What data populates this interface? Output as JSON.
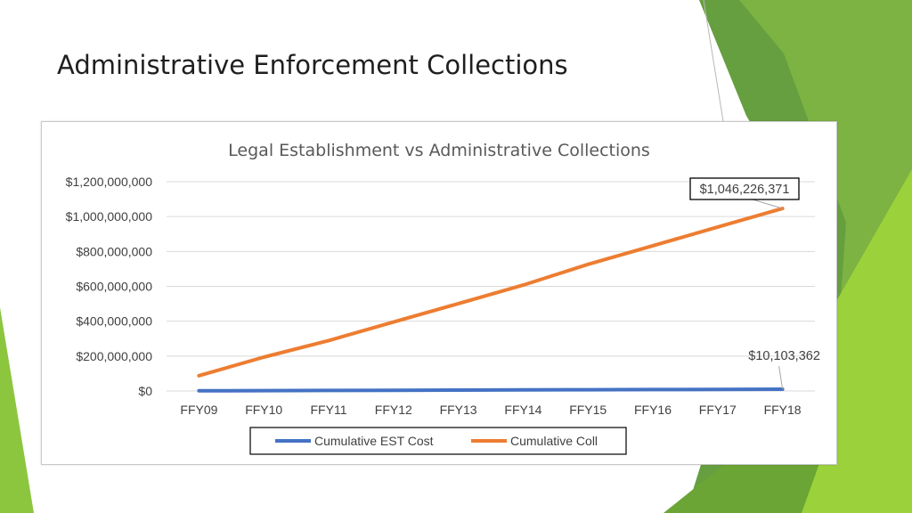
{
  "slide": {
    "title": "Administrative Enforcement Collections"
  },
  "colors": {
    "green_light": "#9bd13a",
    "green_mid": "#7cb342",
    "green_dark": "#5c8f2e",
    "est_series": "#4472c4",
    "coll_series": "#ed7d31"
  },
  "chart_data": {
    "type": "line",
    "title": "Legal Establishment vs Administrative Collections",
    "categories": [
      "FFY09",
      "FFY10",
      "FFY11",
      "FFY12",
      "FFY13",
      "FFY14",
      "FFY15",
      "FFY16",
      "FFY17",
      "FFY18"
    ],
    "series": [
      {
        "name": "Cumulative EST Cost",
        "values": [
          1010000,
          2020000,
          3030000,
          4040000,
          5050000,
          6060000,
          7070000,
          8080000,
          9090000,
          10103362
        ]
      },
      {
        "name": "Cumulative Coll",
        "values": [
          88000000,
          194000000,
          289000000,
          395000000,
          501000000,
          607000000,
          726000000,
          833000000,
          940000000,
          1046226371
        ]
      }
    ],
    "ylim": [
      0,
      1200000000
    ],
    "yticks": [
      "$0",
      "$200,000,000",
      "$400,000,000",
      "$600,000,000",
      "$800,000,000",
      "$1,000,000,000",
      "$1,200,000,000"
    ],
    "ytick_values": [
      0,
      200000000,
      400000000,
      600000000,
      800000000,
      1000000000,
      1200000000
    ],
    "grid": true,
    "legend_position": "bottom",
    "annotations": [
      {
        "series": "Cumulative Coll",
        "point": "FFY18",
        "text": "$1,046,226,371",
        "boxed": true
      },
      {
        "series": "Cumulative EST Cost",
        "point": "FFY18",
        "text": "$10,103,362",
        "boxed": false
      }
    ]
  }
}
